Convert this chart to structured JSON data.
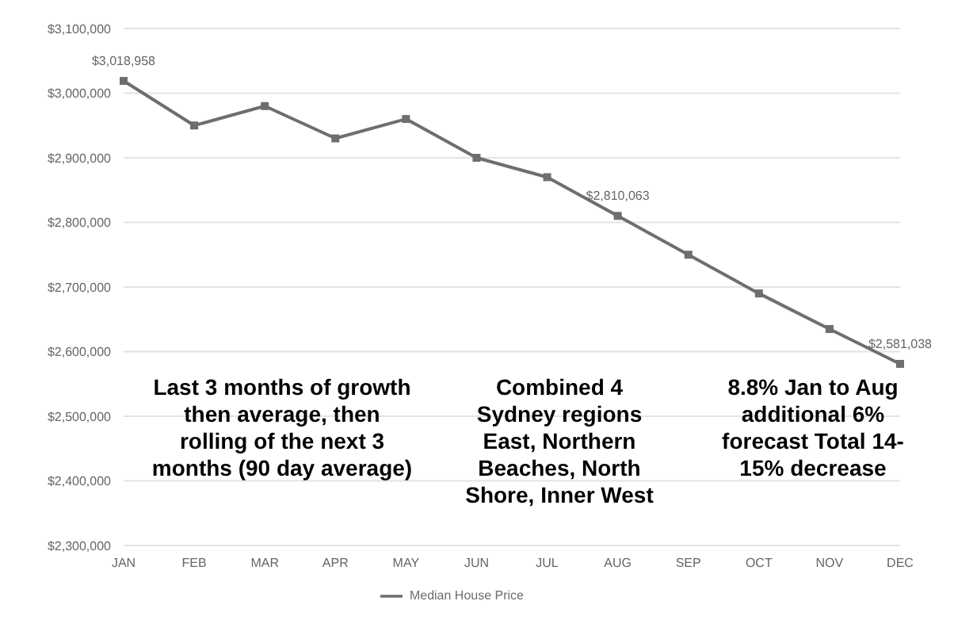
{
  "chart_data": {
    "type": "line",
    "categories": [
      "JAN",
      "FEB",
      "MAR",
      "APR",
      "MAY",
      "JUN",
      "JUL",
      "AUG",
      "SEP",
      "OCT",
      "NOV",
      "DEC"
    ],
    "series": [
      {
        "name": "Median House Price",
        "color": "#6e6e6e",
        "values": [
          3018958,
          2950000,
          2980000,
          2930000,
          2960000,
          2900000,
          2870000,
          2810063,
          2750000,
          2690000,
          2635000,
          2581038
        ],
        "value_labels": [
          "$3,018,958",
          null,
          null,
          null,
          null,
          null,
          null,
          "$2,810,063",
          null,
          null,
          null,
          "$2,581,038"
        ]
      }
    ],
    "ylim": [
      2300000,
      3100000
    ],
    "yticks": [
      {
        "value": 2300000,
        "label": "$2,300,000"
      },
      {
        "value": 2400000,
        "label": "$2,400,000"
      },
      {
        "value": 2500000,
        "label": "$2,500,000"
      },
      {
        "value": 2600000,
        "label": "$2,600,000"
      },
      {
        "value": 2700000,
        "label": "$2,700,000"
      },
      {
        "value": 2800000,
        "label": "$2,800,000"
      },
      {
        "value": 2900000,
        "label": "$2,900,000"
      },
      {
        "value": 3000000,
        "label": "$3,000,000"
      },
      {
        "value": 3100000,
        "label": "$3,100,000"
      }
    ],
    "grid": "y",
    "legend": "bottom",
    "marker": "square",
    "line_style": "solid",
    "annotations": [
      "Last 3 months of growth then average, then rolling of the next 3 months (90 day average)",
      "Combined 4 Sydney regions East, Northern Beaches, North Shore, Inner West",
      "8.8% Jan to Aug additional 6% forecast Total 14-15% decrease"
    ]
  }
}
